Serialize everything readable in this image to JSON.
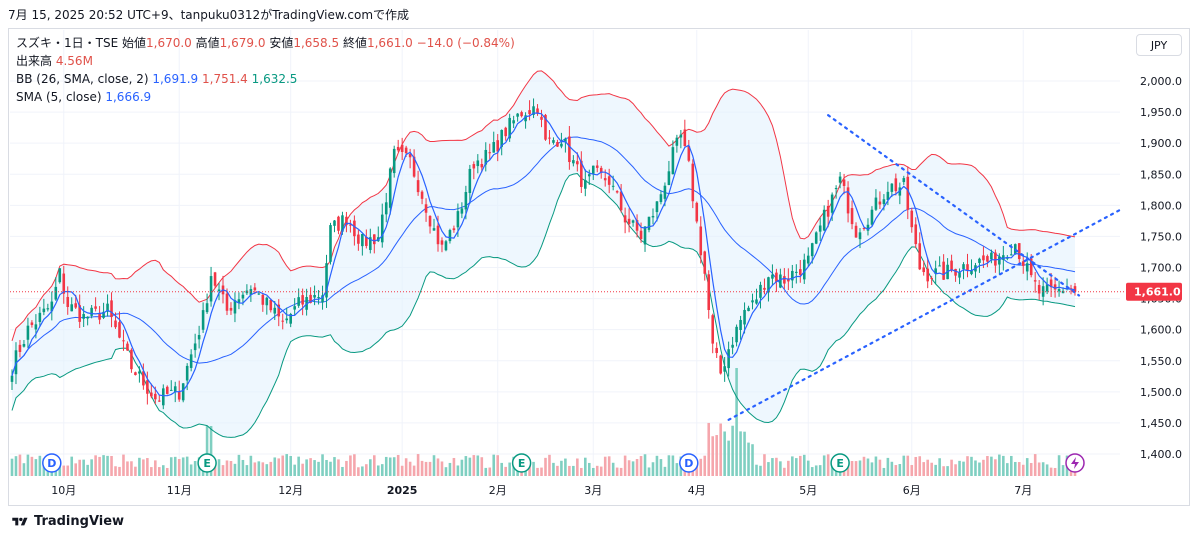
{
  "caption": "7月 15, 2025 20:52 UTC+9、tanpuku0312がTradingView.comで作成",
  "legend": {
    "symbol": "スズキ・1日・TSE",
    "open_label": "始値",
    "open": "1,670.0",
    "high_label": "高値",
    "high": "1,679.0",
    "low_label": "安値",
    "low": "1,658.5",
    "close_label": "終値",
    "close": "1,661.0",
    "change": "−14.0 (−0.84%)",
    "volume_label": "出来高",
    "volume": "4.56M",
    "bb_label": "BB (26, SMA, close, 2)",
    "bb_basis": "1,691.9",
    "bb_upper": "1,751.4",
    "bb_lower": "1,632.5",
    "sma_label": "SMA (5, close)",
    "sma_value": "1,666.9"
  },
  "currency_button": "JPY",
  "footer_brand": "TradingView",
  "colors": {
    "up": "#089981",
    "down": "#f23645",
    "bb_upper": "#f23645",
    "bb_lower": "#089981",
    "bb_basis": "#2962ff",
    "sma": "#2962ff",
    "band_fill": "#e3f2fd",
    "trend": "#2962ff",
    "price_tag": "#f23645"
  },
  "events": [
    {
      "label": "D",
      "index": 10
    },
    {
      "label": "E",
      "index": 49
    },
    {
      "label": "E",
      "index": 128
    },
    {
      "label": "D",
      "index": 170
    },
    {
      "label": "E",
      "index": 208
    }
  ],
  "last_price_tag": "1,661.0",
  "chart_data": {
    "type": "candlestick",
    "title": "スズキ・1日・TSE",
    "y_ticks": [
      1400,
      1450,
      1500,
      1550,
      1600,
      1650,
      1700,
      1750,
      1800,
      1850,
      1900,
      1950,
      2000
    ],
    "y_tick_labels": [
      "1,400.0",
      "1,450.0",
      "1,500.0",
      "1,550.0",
      "1,600.0",
      "1,650.0",
      "1,700.0",
      "1,750.0",
      "1,800.0",
      "1,850.0",
      "1,900.0",
      "1,950.0",
      "2,000.0"
    ],
    "ylim": [
      1380,
      2050
    ],
    "x_ticks": [
      {
        "label": "10月",
        "index": 13
      },
      {
        "label": "11月",
        "index": 42
      },
      {
        "label": "12月",
        "index": 70
      },
      {
        "label": "2025",
        "index": 98
      },
      {
        "label": "2月",
        "index": 122
      },
      {
        "label": "3月",
        "index": 146
      },
      {
        "label": "4月",
        "index": 172
      },
      {
        "label": "5月",
        "index": 200
      },
      {
        "label": "6月",
        "index": 226
      },
      {
        "label": "7月",
        "index": 254
      }
    ],
    "num_bars": 268,
    "anchors": [
      [
        0,
        1540
      ],
      [
        4,
        1600
      ],
      [
        10,
        1640
      ],
      [
        12,
        1690
      ],
      [
        14,
        1640
      ],
      [
        18,
        1620
      ],
      [
        24,
        1630
      ],
      [
        30,
        1540
      ],
      [
        36,
        1490
      ],
      [
        42,
        1500
      ],
      [
        46,
        1580
      ],
      [
        48,
        1620
      ],
      [
        50,
        1690
      ],
      [
        54,
        1630
      ],
      [
        56,
        1650
      ],
      [
        60,
        1670
      ],
      [
        64,
        1640
      ],
      [
        68,
        1610
      ],
      [
        72,
        1640
      ],
      [
        78,
        1660
      ],
      [
        80,
        1760
      ],
      [
        84,
        1780
      ],
      [
        88,
        1740
      ],
      [
        92,
        1750
      ],
      [
        96,
        1880
      ],
      [
        100,
        1870
      ],
      [
        104,
        1800
      ],
      [
        106,
        1760
      ],
      [
        108,
        1730
      ],
      [
        112,
        1780
      ],
      [
        116,
        1870
      ],
      [
        120,
        1880
      ],
      [
        124,
        1920
      ],
      [
        128,
        1950
      ],
      [
        132,
        1960
      ],
      [
        134,
        1900
      ],
      [
        138,
        1910
      ],
      [
        140,
        1880
      ],
      [
        144,
        1830
      ],
      [
        146,
        1850
      ],
      [
        150,
        1840
      ],
      [
        154,
        1780
      ],
      [
        158,
        1750
      ],
      [
        162,
        1800
      ],
      [
        166,
        1880
      ],
      [
        168,
        1910
      ],
      [
        170,
        1860
      ],
      [
        172,
        1770
      ],
      [
        174,
        1690
      ],
      [
        176,
        1570
      ],
      [
        178,
        1530
      ],
      [
        180,
        1570
      ],
      [
        184,
        1630
      ],
      [
        186,
        1640
      ],
      [
        190,
        1690
      ],
      [
        194,
        1680
      ],
      [
        196,
        1690
      ],
      [
        200,
        1710
      ],
      [
        204,
        1780
      ],
      [
        206,
        1810
      ],
      [
        208,
        1840
      ],
      [
        210,
        1800
      ],
      [
        212,
        1760
      ],
      [
        216,
        1790
      ],
      [
        220,
        1830
      ],
      [
        224,
        1830
      ],
      [
        226,
        1760
      ],
      [
        228,
        1700
      ],
      [
        230,
        1690
      ],
      [
        234,
        1690
      ],
      [
        238,
        1700
      ],
      [
        242,
        1710
      ],
      [
        246,
        1710
      ],
      [
        250,
        1730
      ],
      [
        252,
        1740
      ],
      [
        254,
        1710
      ],
      [
        256,
        1680
      ],
      [
        258,
        1660
      ],
      [
        262,
        1660
      ],
      [
        265,
        1670
      ],
      [
        267,
        1661
      ]
    ],
    "series": [
      {
        "name": "BB (26, SMA, close, 2) upper",
        "last": 1751.4
      },
      {
        "name": "BB (26, SMA, close, 2) basis",
        "last": 1691.9
      },
      {
        "name": "BB (26, SMA, close, 2) lower",
        "last": 1632.5
      },
      {
        "name": "SMA (5, close)",
        "last": 1666.9
      }
    ],
    "trendlines": [
      {
        "from": [
          205,
          1945
        ],
        "to": [
          268,
          1655
        ]
      },
      {
        "from": [
          180,
          1455
        ],
        "to": [
          279,
          1795
        ]
      }
    ],
    "last": {
      "open": 1670.0,
      "high": 1679.0,
      "low": 1658.5,
      "close": 1661.0,
      "volume": "4.56M"
    }
  }
}
